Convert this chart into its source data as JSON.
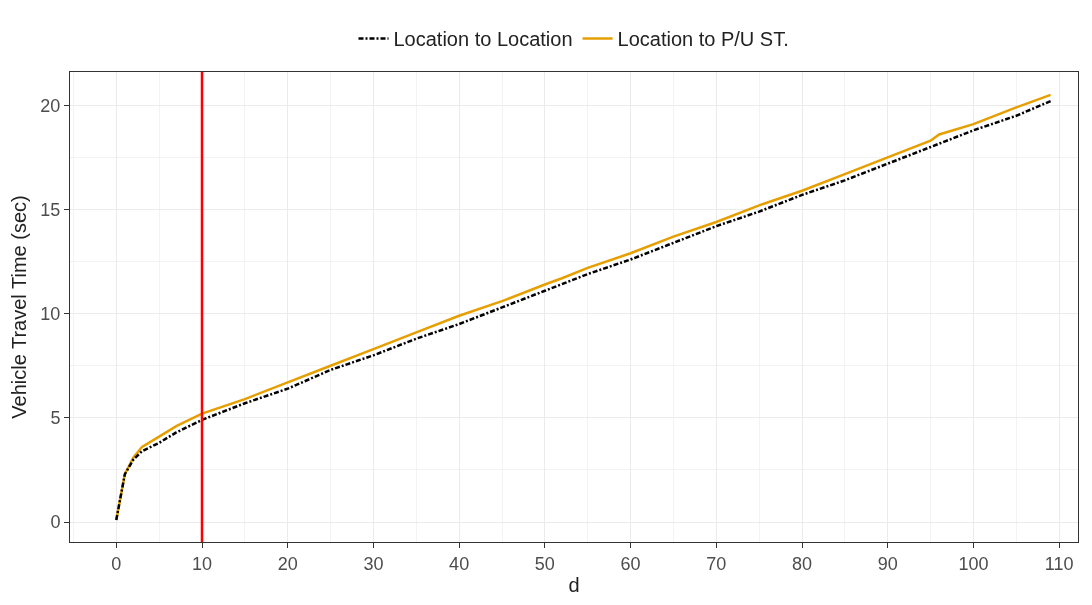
{
  "chart_data": {
    "type": "line",
    "xlabel": "d",
    "ylabel": "Vehicle Travel Time (sec)",
    "xlim": [
      -5.4,
      112.2
    ],
    "ylim": [
      -0.96,
      21.6
    ],
    "xticks": [
      0,
      10,
      20,
      30,
      40,
      50,
      60,
      70,
      80,
      90,
      100,
      110
    ],
    "yticks": [
      0,
      5,
      10,
      15,
      20
    ],
    "grid": true,
    "legend": "top",
    "marker": "none",
    "series": [
      {
        "name": "Location to Location",
        "color": "#000000",
        "line_style": "dashdot",
        "x": [
          0,
          1,
          2,
          3,
          5,
          7,
          10,
          15,
          20,
          25,
          30,
          35,
          40,
          45,
          50,
          55,
          60,
          65,
          70,
          75,
          80,
          85,
          90,
          95,
          100,
          105,
          109
        ],
        "values": [
          0.1,
          2.3,
          3.0,
          3.4,
          3.8,
          4.3,
          4.9,
          5.7,
          6.4,
          7.3,
          8.0,
          8.8,
          9.5,
          10.3,
          11.1,
          11.9,
          12.6,
          13.4,
          14.2,
          14.9,
          15.7,
          16.4,
          17.2,
          18.0,
          18.8,
          19.5,
          20.2
        ]
      },
      {
        "name": "Location to P/U ST.",
        "color": "#e69f00",
        "line_style": "solid",
        "x": [
          0,
          1,
          2,
          3,
          5,
          7,
          10,
          15,
          20,
          25,
          30,
          35,
          40,
          45,
          50,
          52,
          55,
          60,
          65,
          70,
          75,
          80,
          85,
          90,
          95,
          96,
          100,
          105,
          109
        ],
        "values": [
          0.1,
          2.3,
          3.1,
          3.6,
          4.1,
          4.6,
          5.2,
          5.9,
          6.7,
          7.5,
          8.3,
          9.1,
          9.9,
          10.6,
          11.4,
          11.7,
          12.2,
          12.9,
          13.7,
          14.4,
          15.2,
          15.9,
          16.7,
          17.5,
          18.3,
          18.6,
          19.1,
          19.9,
          20.5
        ]
      }
    ],
    "ref_lines": [
      {
        "axis": "x",
        "value": 10,
        "color": "#ff0000",
        "line_style": "solid"
      }
    ]
  }
}
